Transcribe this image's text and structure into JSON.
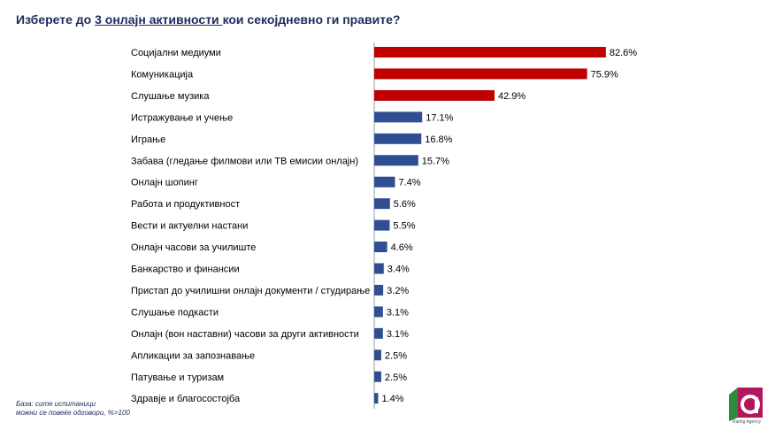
{
  "title": {
    "prefix": "Изберете до ",
    "emphasis": "3 онлајн активности ",
    "suffix": "кои секојдневно ги правите?"
  },
  "footnote": {
    "line1": "База: сите испитаници",
    "line2": "можни се повеќе одговори, %>100"
  },
  "logo": {
    "icon": "rating-agency-logo",
    "text": "Rating Agency"
  },
  "colors": {
    "highlight": "#c00000",
    "regular": "#2f4f92",
    "title": "#1f2a5c"
  },
  "chart_data": {
    "type": "bar",
    "orientation": "horizontal",
    "categories": [
      "Социјални медиуми",
      "Комуникација",
      "Слушање музика",
      "Истражување и учење",
      "Играње",
      "Забава (гледање филмови или ТВ емисии онлајн)",
      "Онлајн шопинг",
      "Работа и продуктивност",
      "Вести и актуелни настани",
      "Онлајн часови за училиште",
      "Банкарство и финансии",
      "Пристап до училишни онлајн документи / студирање",
      "Слушање подкасти",
      "Онлајн (вон наставни) часови за други активности",
      "Апликации за запознавање",
      "Патување и туризам",
      "Здравје и благосостојба"
    ],
    "values": [
      82.6,
      75.9,
      42.9,
      17.1,
      16.8,
      15.7,
      7.4,
      5.6,
      5.5,
      4.6,
      3.4,
      3.2,
      3.1,
      3.1,
      2.5,
      2.5,
      1.4
    ],
    "data_labels": [
      "82.6%",
      "75.9%",
      "42.9%",
      "17.1%",
      "16.8%",
      "15.7%",
      "7.4%",
      "5.6%",
      "5.5%",
      "4.6%",
      "3.4%",
      "3.2%",
      "3.1%",
      "3.1%",
      "2.5%",
      "2.5%",
      "1.4%"
    ],
    "highlight_top": 3,
    "xlim": [
      0,
      100
    ],
    "unit": "%",
    "grid": false,
    "legend": "none"
  }
}
